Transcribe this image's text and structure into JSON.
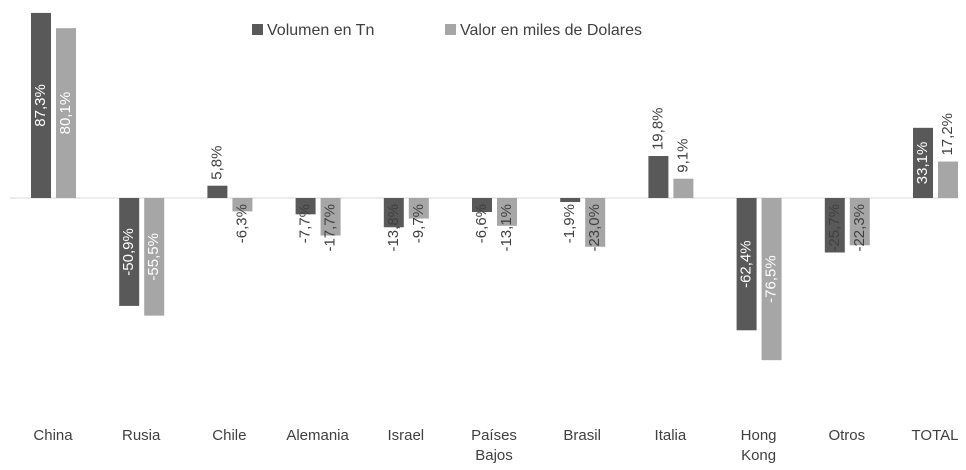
{
  "chart_data": {
    "type": "bar",
    "categories": [
      "China",
      "Rusia",
      "Chile",
      "Alemania",
      "Israel",
      "Países Bajos",
      "Brasil",
      "Italia",
      "Hong Kong",
      "Otros",
      "TOTAL"
    ],
    "series": [
      {
        "name": "Volumen en Tn",
        "color": "#595959",
        "values": [
          87.3,
          -50.9,
          5.8,
          -7.7,
          -13.8,
          -6.6,
          -1.9,
          19.8,
          -62.4,
          -25.7,
          33.1
        ],
        "value_labels": [
          "87,3%",
          "-50,9%",
          "5,8%",
          "-7,7%",
          "-13,8%",
          "-6,6%",
          "-1,9%",
          "19,8%",
          "-62,4%",
          "-25,7%",
          "33,1%"
        ]
      },
      {
        "name": "Valor en miles de Dolares",
        "color": "#a6a6a6",
        "values": [
          80.1,
          -55.5,
          -6.3,
          -17.7,
          -9.7,
          -13.1,
          -23.0,
          9.1,
          -76.5,
          -22.3,
          17.2
        ],
        "value_labels": [
          "80,1%",
          "-55,5%",
          "-6,3%",
          "-17,7%",
          "-9,7%",
          "-13,1%",
          "-23,0%",
          "9,1%",
          "-76,5%",
          "-22,3%",
          "17,2%"
        ]
      }
    ]
  }
}
